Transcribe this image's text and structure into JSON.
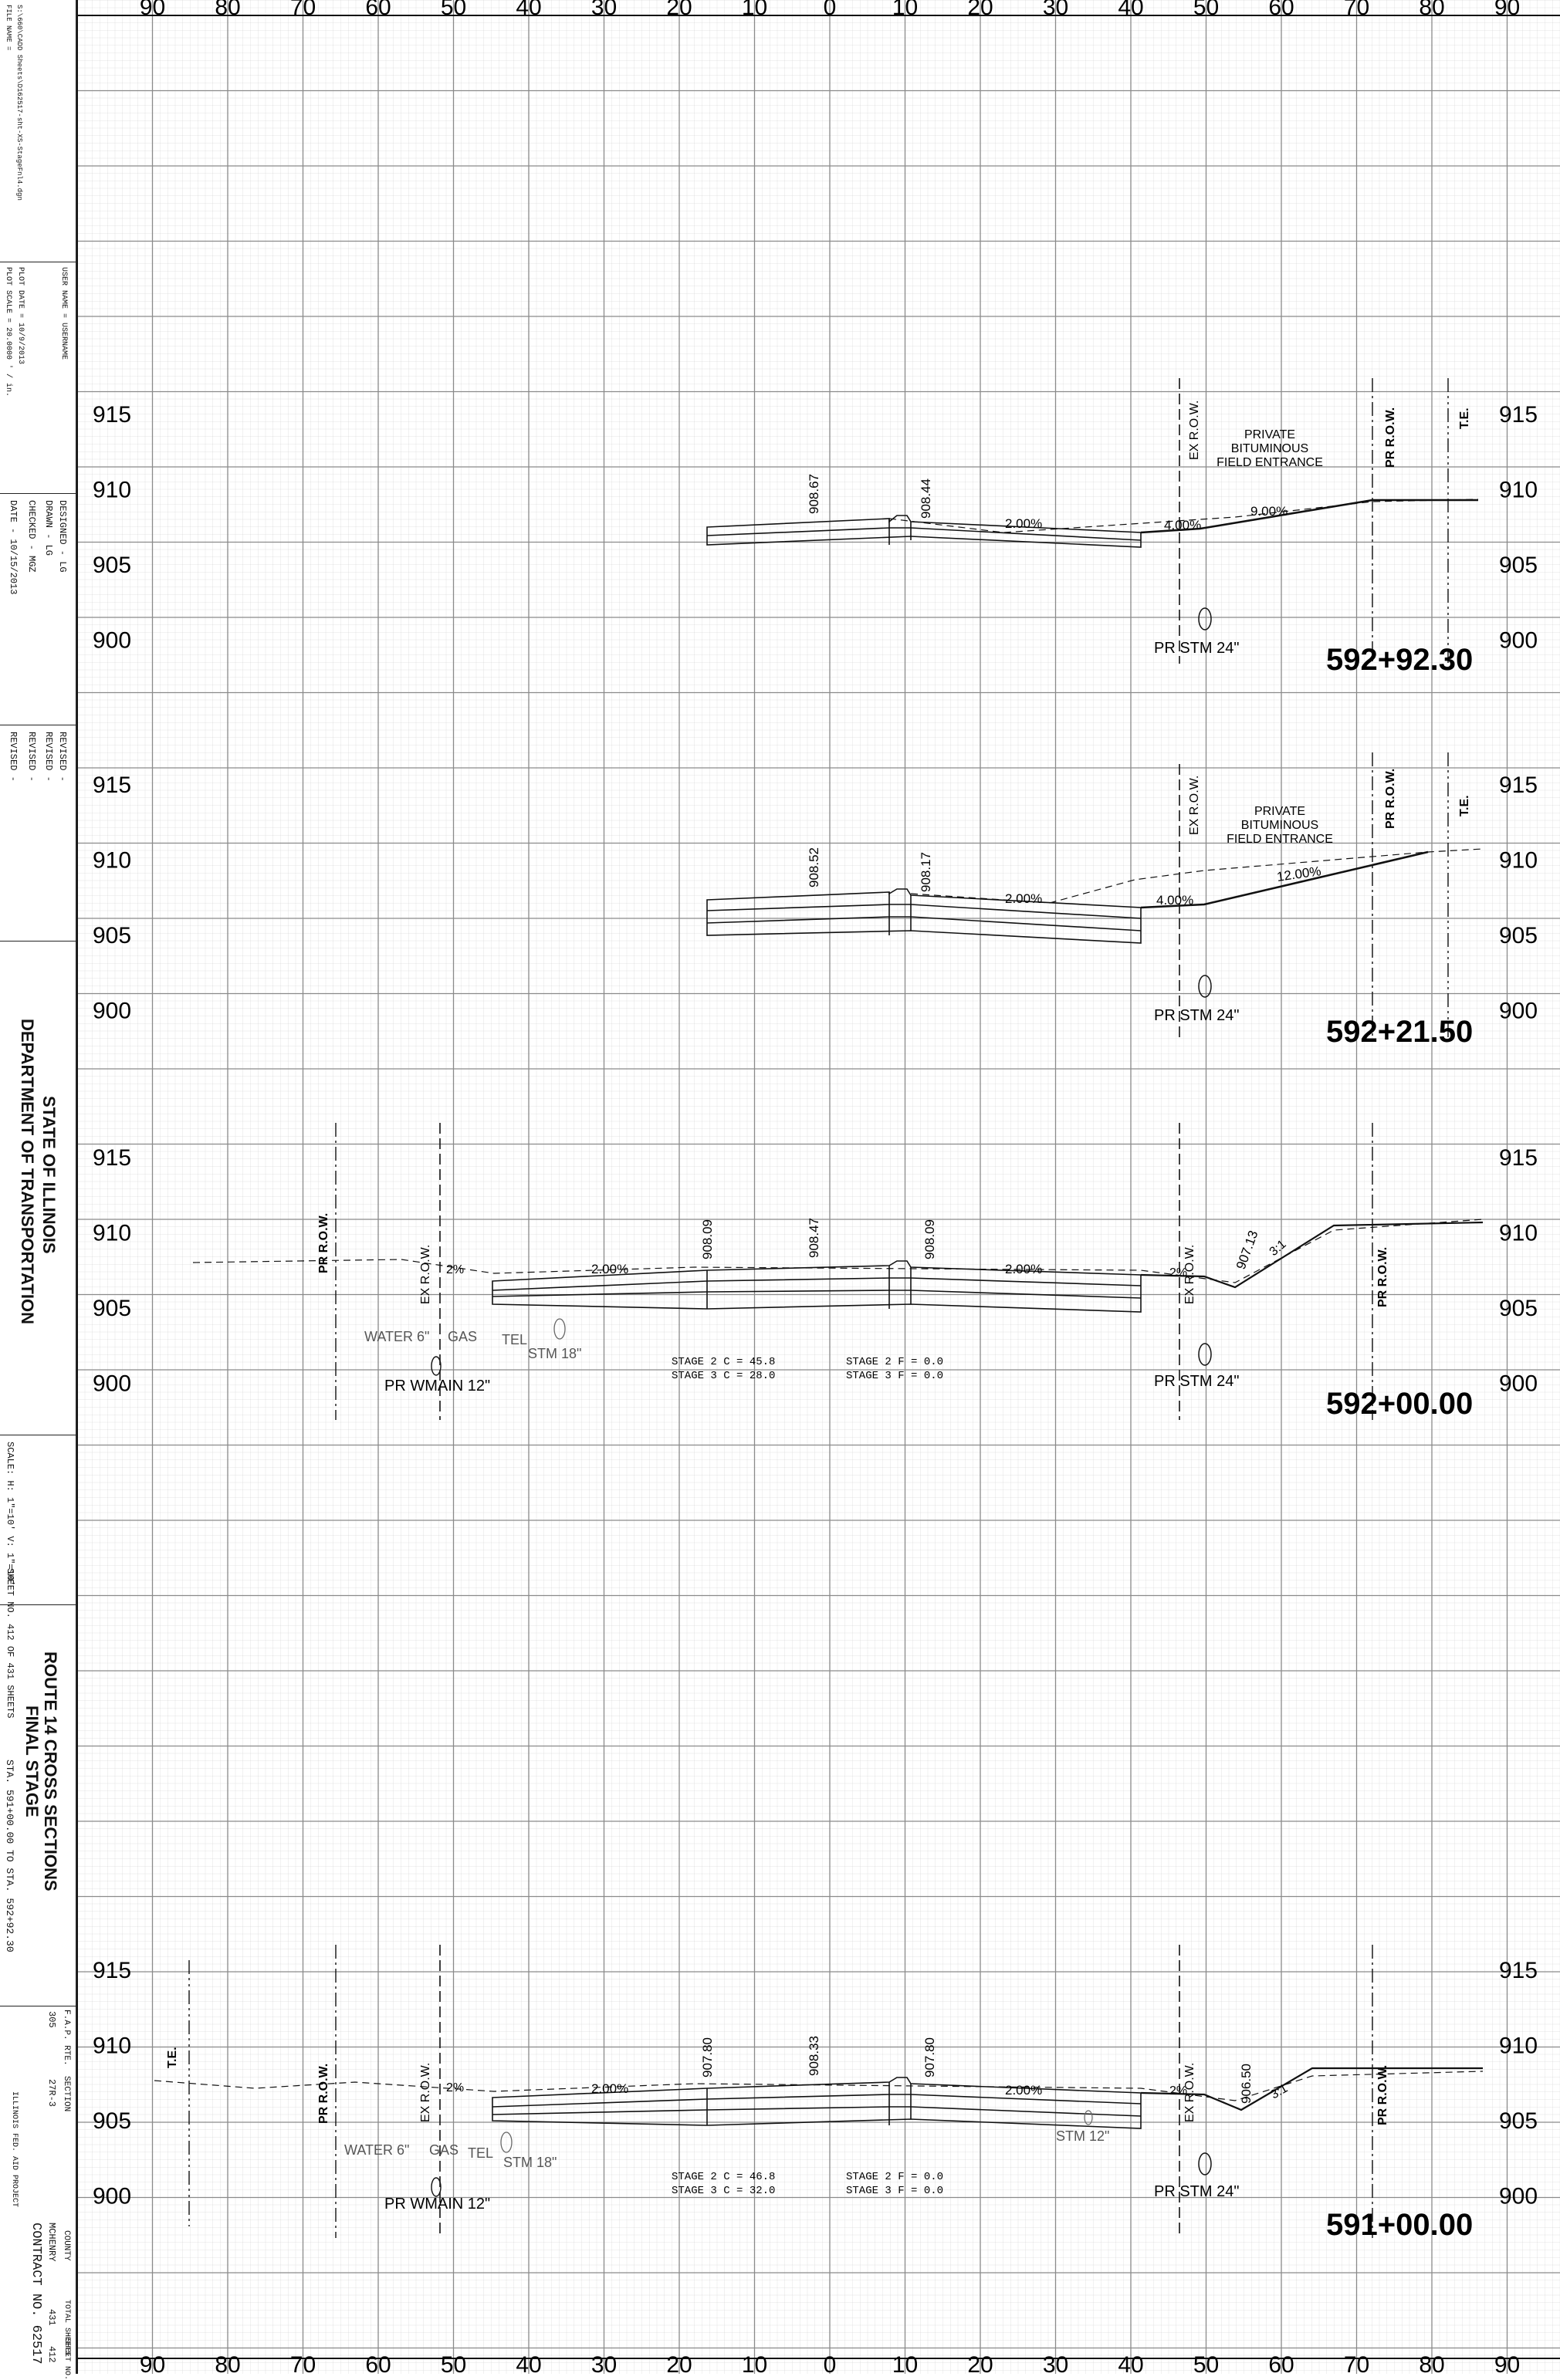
{
  "title_block": {
    "file_name_label": "FILE NAME =",
    "file_name": "S:\\660\\CADD Sheets\\D162517-sht-XS-StageFnl4.dgn",
    "user_name": "USER NAME = USERNAME",
    "plot_scale": "PLOT SCALE = 20.0000 ' / in.",
    "plot_date": "PLOT DATE = 10/9/2013",
    "designed": "DESIGNED  -  LG",
    "drawn": "DRAWN  -  LG",
    "checked": "CHECKED  -  MGZ",
    "date": "DATE  -  10/15/2013",
    "revised_1": "REVISED  -",
    "revised_2": "REVISED  -",
    "revised_3": "REVISED  -",
    "revised_4": "REVISED  -",
    "agency_line1": "STATE OF ILLINOIS",
    "agency_line2": "DEPARTMENT OF TRANSPORTATION",
    "scale": "SCALE: H: 1\"=10' V: 1\"=10'",
    "sheet_no": "SHEET NO. 412 OF 431 SHEETS",
    "sheet_title1": "ROUTE 14 CROSS SECTIONS",
    "sheet_title2": "FINAL STAGE",
    "sta_range": "STA. 591+00.00    TO STA. 592+92.30",
    "fap_rte_label": "F.A.P. RTE.",
    "fap_rte": "305",
    "section_label": "SECTION",
    "section": "27R-3",
    "county_label": "COUNTY",
    "county": "MCHENRY",
    "total_sheets_label": "TOTAL SHEETS",
    "total_sheets": "431",
    "sheet_no_label": "SHEET NO.",
    "sheet_no_val": "412",
    "contract": "CONTRACT NO. 62517",
    "fed_aid": "ILLINOIS FED. AID PROJECT"
  },
  "offset_labels": [
    "90",
    "80",
    "70",
    "60",
    "50",
    "40",
    "30",
    "20",
    "10",
    "0",
    "10",
    "20",
    "30",
    "40",
    "50",
    "60",
    "70",
    "80",
    "90"
  ],
  "sections": [
    {
      "station": "592+92.30",
      "elev_labels": [
        "915",
        "910",
        "905",
        "900"
      ],
      "texts": {
        "e1": "908.67",
        "e2": "908.44",
        "s1": "2.00%",
        "s2": "4.00%",
        "s3": "9.00%",
        "pvt1": "PRIVATE",
        "pvt2": "BITUMINOUS",
        "pvt3": "FIELD ENTRANCE",
        "exrow": "EX R.O.W.",
        "prrow": "PR R.O.W.",
        "te": "T.E.",
        "stm": "PR STM 24\""
      }
    },
    {
      "station": "592+21.50",
      "elev_labels": [
        "915",
        "910",
        "905",
        "900"
      ],
      "texts": {
        "e1": "908.52",
        "e2": "908.17",
        "s1": "2.00%",
        "s2": "4.00%",
        "s3": "12.00%",
        "pvt1": "PRIVATE",
        "pvt2": "BITUMINOUS",
        "pvt3": "FIELD ENTRANCE",
        "exrow": "EX R.O.W.",
        "prrow": "PR R.O.W.",
        "te": "T.E.",
        "stm": "PR STM 24\""
      }
    },
    {
      "station": "592+00.00",
      "elev_labels": [
        "915",
        "910",
        "905",
        "900"
      ],
      "texts": {
        "e1": "908.09",
        "e2": "908.47",
        "e3": "908.09",
        "e4": "907.13",
        "s1": "2.00%",
        "s2": "2.00%",
        "s3": "2%",
        "s4": "2%",
        "s5": "3:1",
        "prrowL": "PR R.O.W.",
        "exrowL": "EX R.O.W.",
        "exrowR": "EX R.O.W.",
        "prrowR": "PR R.O.W.",
        "water": "WATER 6\"",
        "gas": "GAS",
        "tel": "TEL",
        "stm18": "STM 18\"",
        "wmain": "PR WMAIN 12\"",
        "stm": "PR STM 24\"",
        "st1": "STAGE 2 C = 45.8",
        "st2": "STAGE 3 C = 28.0",
        "st3": "STAGE 2 F = 0.0",
        "st4": "STAGE 3 F = 0.0"
      }
    },
    {
      "station": "591+00.00",
      "elev_labels": [
        "915",
        "910",
        "905",
        "900"
      ],
      "texts": {
        "e1": "907.80",
        "e2": "908.33",
        "e3": "907.80",
        "e4": "906.50",
        "s1": "2.00%",
        "s2": "2.00%",
        "s3": "2%",
        "s4": "2%",
        "s5": "3:1",
        "te": "T.E.",
        "prrowL": "PR R.O.W.",
        "exrowL": "EX R.O.W.",
        "exrowR": "EX R.O.W.",
        "prrowR": "PR R.O.W.",
        "water": "WATER 6\"",
        "gas": "GAS",
        "tel": "TEL",
        "stm18": "STM 18\"",
        "stm12": "STM 12\"",
        "wmain": "PR WMAIN 12\"",
        "stm": "PR STM 24\"",
        "st1": "STAGE 2 C = 46.8",
        "st2": "STAGE 3 C = 32.0",
        "st3": "STAGE 2 F = 0.0",
        "st4": "STAGE 3 F = 0.0"
      }
    }
  ]
}
